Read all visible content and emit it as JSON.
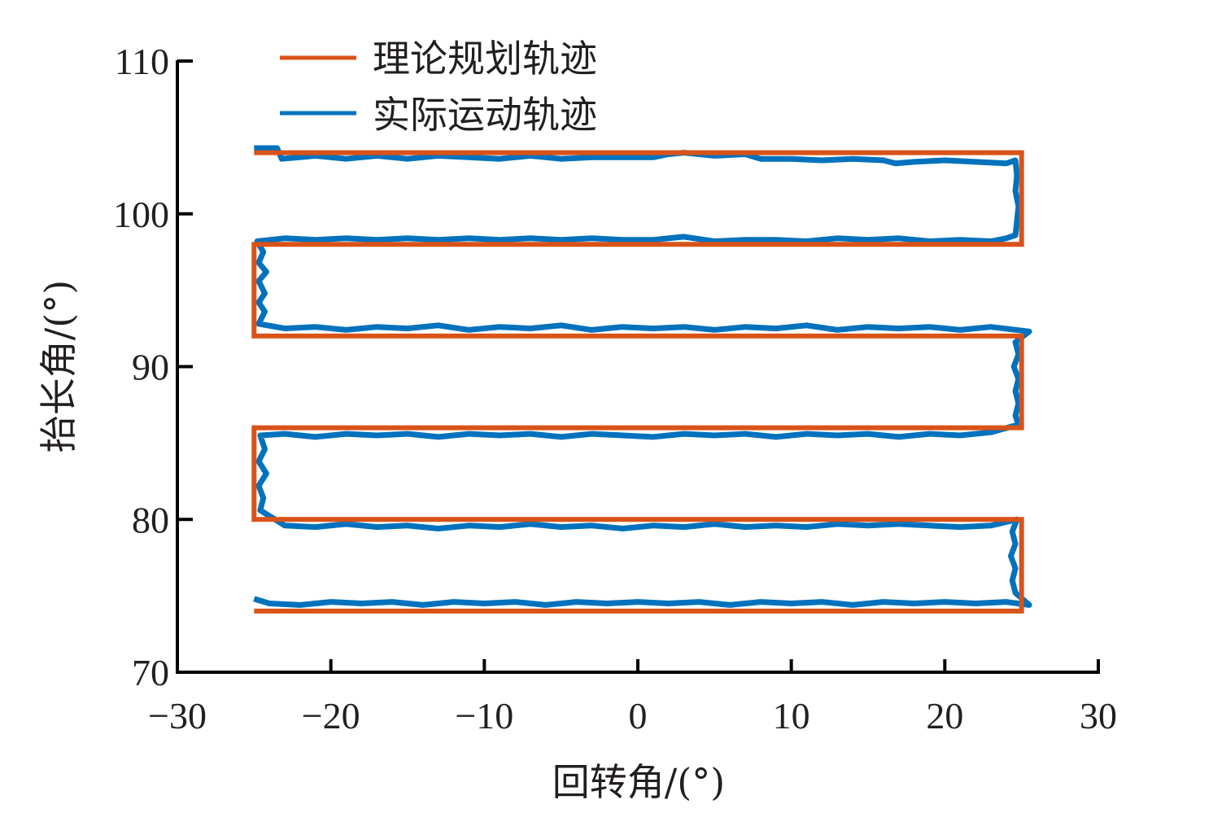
{
  "chart_data": {
    "type": "line",
    "title": "",
    "xlabel": "回转角/(°)",
    "ylabel": "抬长角/(°)",
    "xlim": [
      -30,
      30
    ],
    "ylim": [
      70,
      110
    ],
    "xticks": [
      -30,
      -20,
      -10,
      0,
      10,
      20,
      30
    ],
    "xtick_labels": [
      "−30",
      "−20",
      "−10",
      "0",
      "10",
      "20",
      "30"
    ],
    "yticks": [
      70,
      80,
      90,
      100,
      110
    ],
    "ytick_labels": [
      "70",
      "80",
      "90",
      "100",
      "110"
    ],
    "grid": false,
    "legend_position": "upper-left",
    "series": [
      {
        "name": "理论规划轨迹",
        "color": "#D95319",
        "points": [
          [
            -25,
            104
          ],
          [
            25,
            104
          ],
          [
            25,
            98
          ],
          [
            -25,
            98
          ],
          [
            -25,
            92
          ],
          [
            25,
            92
          ],
          [
            25,
            86
          ],
          [
            -25,
            86
          ],
          [
            -25,
            80
          ],
          [
            25,
            80
          ],
          [
            25,
            74
          ],
          [
            -25,
            74
          ]
        ]
      },
      {
        "name": "实际运动轨迹",
        "color": "#0072BD",
        "points": [
          [
            -25,
            104.3
          ],
          [
            -23.5,
            104.3
          ],
          [
            -23.2,
            103.6
          ],
          [
            -21,
            103.8
          ],
          [
            -19,
            103.6
          ],
          [
            -17,
            103.8
          ],
          [
            -15,
            103.6
          ],
          [
            -13,
            103.8
          ],
          [
            -11,
            103.7
          ],
          [
            -9,
            103.6
          ],
          [
            -7,
            103.8
          ],
          [
            -5,
            103.6
          ],
          [
            -3,
            103.7
          ],
          [
            -1,
            103.7
          ],
          [
            1,
            103.7
          ],
          [
            2,
            103.9
          ],
          [
            3,
            104.0
          ],
          [
            5,
            103.8
          ],
          [
            7,
            103.9
          ],
          [
            8,
            103.6
          ],
          [
            10,
            103.6
          ],
          [
            12,
            103.5
          ],
          [
            14,
            103.6
          ],
          [
            16,
            103.5
          ],
          [
            16.8,
            103.3
          ],
          [
            18,
            103.4
          ],
          [
            20,
            103.5
          ],
          [
            22,
            103.4
          ],
          [
            24,
            103.3
          ],
          [
            24.6,
            103.5
          ],
          [
            24.7,
            102.5
          ],
          [
            24.6,
            101.5
          ],
          [
            24.8,
            100.5
          ],
          [
            24.7,
            99.5
          ],
          [
            24.6,
            98.6
          ],
          [
            24,
            98.4
          ],
          [
            23,
            98.2
          ],
          [
            21,
            98.3
          ],
          [
            19,
            98.2
          ],
          [
            17,
            98.4
          ],
          [
            15,
            98.3
          ],
          [
            13,
            98.4
          ],
          [
            11,
            98.2
          ],
          [
            9,
            98.3
          ],
          [
            7,
            98.3
          ],
          [
            5,
            98.2
          ],
          [
            3,
            98.5
          ],
          [
            1,
            98.3
          ],
          [
            -1,
            98.3
          ],
          [
            -3,
            98.4
          ],
          [
            -5,
            98.3
          ],
          [
            -7,
            98.4
          ],
          [
            -9,
            98.3
          ],
          [
            -11,
            98.4
          ],
          [
            -13,
            98.3
          ],
          [
            -15,
            98.4
          ],
          [
            -17,
            98.3
          ],
          [
            -19,
            98.4
          ],
          [
            -21,
            98.3
          ],
          [
            -23,
            98.4
          ],
          [
            -24.8,
            98.2
          ],
          [
            -24.4,
            97.5
          ],
          [
            -24.7,
            96.8
          ],
          [
            -24.2,
            96.2
          ],
          [
            -24.7,
            95.6
          ],
          [
            -24.3,
            94.8
          ],
          [
            -24.7,
            94.2
          ],
          [
            -24.3,
            93.6
          ],
          [
            -24.7,
            92.8
          ],
          [
            -23,
            92.5
          ],
          [
            -21,
            92.6
          ],
          [
            -19,
            92.4
          ],
          [
            -17,
            92.6
          ],
          [
            -15,
            92.5
          ],
          [
            -13,
            92.7
          ],
          [
            -11,
            92.4
          ],
          [
            -9,
            92.6
          ],
          [
            -7,
            92.5
          ],
          [
            -5,
            92.7
          ],
          [
            -3,
            92.4
          ],
          [
            -1,
            92.6
          ],
          [
            1,
            92.5
          ],
          [
            3,
            92.6
          ],
          [
            5,
            92.4
          ],
          [
            7,
            92.6
          ],
          [
            9,
            92.5
          ],
          [
            11,
            92.7
          ],
          [
            13,
            92.4
          ],
          [
            15,
            92.6
          ],
          [
            17,
            92.5
          ],
          [
            19,
            92.6
          ],
          [
            21,
            92.4
          ],
          [
            23,
            92.6
          ],
          [
            25.5,
            92.3
          ],
          [
            24.6,
            91.6
          ],
          [
            24.8,
            90.8
          ],
          [
            24.5,
            90
          ],
          [
            24.8,
            89.2
          ],
          [
            24.6,
            88.4
          ],
          [
            24.8,
            87.6
          ],
          [
            24.6,
            86.8
          ],
          [
            24.8,
            86.2
          ],
          [
            23,
            85.7
          ],
          [
            21,
            85.5
          ],
          [
            19,
            85.6
          ],
          [
            17,
            85.4
          ],
          [
            15,
            85.6
          ],
          [
            13,
            85.5
          ],
          [
            11,
            85.6
          ],
          [
            9,
            85.4
          ],
          [
            7,
            85.6
          ],
          [
            5,
            85.5
          ],
          [
            3,
            85.6
          ],
          [
            1,
            85.4
          ],
          [
            -1,
            85.5
          ],
          [
            -3,
            85.6
          ],
          [
            -5,
            85.4
          ],
          [
            -7,
            85.6
          ],
          [
            -9,
            85.5
          ],
          [
            -11,
            85.6
          ],
          [
            -13,
            85.4
          ],
          [
            -15,
            85.6
          ],
          [
            -17,
            85.5
          ],
          [
            -19,
            85.6
          ],
          [
            -21,
            85.4
          ],
          [
            -23,
            85.6
          ],
          [
            -24.6,
            85.5
          ],
          [
            -24.3,
            84.6
          ],
          [
            -24.7,
            83.8
          ],
          [
            -24.2,
            83
          ],
          [
            -24.7,
            82.2
          ],
          [
            -24.4,
            81.4
          ],
          [
            -24.6,
            80.6
          ],
          [
            -23,
            79.6
          ],
          [
            -21,
            79.5
          ],
          [
            -19,
            79.7
          ],
          [
            -17,
            79.5
          ],
          [
            -15,
            79.6
          ],
          [
            -13,
            79.4
          ],
          [
            -11,
            79.6
          ],
          [
            -9,
            79.5
          ],
          [
            -7,
            79.7
          ],
          [
            -5,
            79.5
          ],
          [
            -3,
            79.6
          ],
          [
            -1,
            79.4
          ],
          [
            1,
            79.6
          ],
          [
            3,
            79.5
          ],
          [
            5,
            79.7
          ],
          [
            7,
            79.5
          ],
          [
            9,
            79.6
          ],
          [
            11,
            79.5
          ],
          [
            13,
            79.7
          ],
          [
            15,
            79.6
          ],
          [
            17,
            79.7
          ],
          [
            19,
            79.6
          ],
          [
            21,
            79.5
          ],
          [
            23,
            79.6
          ],
          [
            24.7,
            80.0
          ],
          [
            24.4,
            79.2
          ],
          [
            24.6,
            78.4
          ],
          [
            24.3,
            77.6
          ],
          [
            24.6,
            76.8
          ],
          [
            24.4,
            76.0
          ],
          [
            24.6,
            75.2
          ],
          [
            25.5,
            74.4
          ],
          [
            24,
            74.6
          ],
          [
            22,
            74.5
          ],
          [
            20,
            74.6
          ],
          [
            18,
            74.5
          ],
          [
            16,
            74.6
          ],
          [
            14,
            74.4
          ],
          [
            12,
            74.6
          ],
          [
            10,
            74.5
          ],
          [
            8,
            74.6
          ],
          [
            6,
            74.4
          ],
          [
            4,
            74.6
          ],
          [
            2,
            74.5
          ],
          [
            0,
            74.6
          ],
          [
            -2,
            74.5
          ],
          [
            -4,
            74.6
          ],
          [
            -6,
            74.4
          ],
          [
            -8,
            74.6
          ],
          [
            -10,
            74.5
          ],
          [
            -12,
            74.6
          ],
          [
            -14,
            74.4
          ],
          [
            -16,
            74.6
          ],
          [
            -18,
            74.5
          ],
          [
            -20,
            74.6
          ],
          [
            -22,
            74.4
          ],
          [
            -24,
            74.5
          ],
          [
            -25,
            74.8
          ]
        ]
      }
    ]
  },
  "legend": {
    "items": [
      {
        "label": "理论规划轨迹",
        "color": "#D95319"
      },
      {
        "label": "实际运动轨迹",
        "color": "#0072BD"
      }
    ]
  },
  "axes": {
    "x_title": "回转角/(°)",
    "y_title": "抬长角/(°)"
  }
}
